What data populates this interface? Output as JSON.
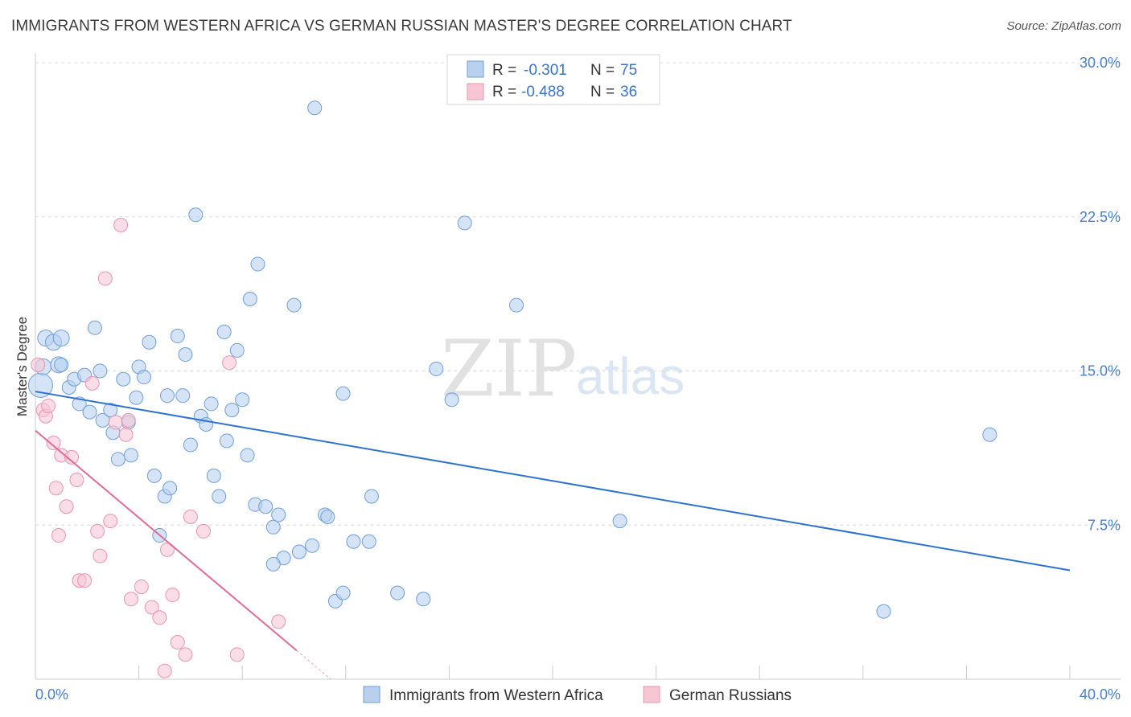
{
  "title": "IMMIGRANTS FROM WESTERN AFRICA VS GERMAN RUSSIAN MASTER'S DEGREE CORRELATION CHART",
  "source": "Source: ZipAtlas.com",
  "watermark": {
    "zip": "ZIP",
    "atlas": "atlas"
  },
  "colors": {
    "blue_fill": "#b8d0ee",
    "blue_stroke": "#6f9fd8",
    "blue_line": "#2e72cf",
    "pink_fill": "#f6c6d5",
    "pink_stroke": "#e795b0",
    "pink_line": "#e06b96",
    "grid": "#dddddd",
    "axis_label": "#4a7fcc"
  },
  "legend_top": {
    "rows": [
      {
        "r_label": "R =",
        "r_value": "-0.301",
        "n_label": "N =",
        "n_value": "75"
      },
      {
        "r_label": "R =",
        "r_value": "-0.488",
        "n_label": "N =",
        "n_value": "36"
      }
    ]
  },
  "chart_data": {
    "type": "scatter",
    "title": "IMMIGRANTS FROM WESTERN AFRICA VS GERMAN RUSSIAN MASTER'S DEGREE CORRELATION CHART",
    "xlabel": "",
    "ylabel": "Master's Degree",
    "xlim": [
      0,
      40
    ],
    "ylim": [
      0,
      30
    ],
    "x_tick_labels": [
      "0.0%",
      "40.0%"
    ],
    "y_ticks": [
      7.5,
      15.0,
      22.5,
      30.0
    ],
    "y_tick_labels": [
      "7.5%",
      "15.0%",
      "22.5%",
      "30.0%"
    ],
    "legend": [
      "Immigrants from Western Africa",
      "German Russians"
    ],
    "series": [
      {
        "name": "Immigrants from Western Africa",
        "color": "blue",
        "trend": {
          "x0": 0,
          "y0": 14.0,
          "x1": 40,
          "y1": 5.3
        },
        "points": [
          [
            0.2,
            14.3
          ],
          [
            0.3,
            15.2
          ],
          [
            0.4,
            16.6
          ],
          [
            0.7,
            16.4
          ],
          [
            0.9,
            15.3
          ],
          [
            1.0,
            16.6
          ],
          [
            1.0,
            15.3
          ],
          [
            1.3,
            14.2
          ],
          [
            1.5,
            14.6
          ],
          [
            1.7,
            13.4
          ],
          [
            1.9,
            14.8
          ],
          [
            2.1,
            13.0
          ],
          [
            2.3,
            17.1
          ],
          [
            2.5,
            15.0
          ],
          [
            2.6,
            12.6
          ],
          [
            2.9,
            13.1
          ],
          [
            3.0,
            12.0
          ],
          [
            3.2,
            10.7
          ],
          [
            3.4,
            14.6
          ],
          [
            3.6,
            12.5
          ],
          [
            3.7,
            10.9
          ],
          [
            3.9,
            13.7
          ],
          [
            4.0,
            15.2
          ],
          [
            4.2,
            14.7
          ],
          [
            4.4,
            16.4
          ],
          [
            4.6,
            9.9
          ],
          [
            4.8,
            7.0
          ],
          [
            5.0,
            8.9
          ],
          [
            5.1,
            13.8
          ],
          [
            5.2,
            9.3
          ],
          [
            5.5,
            16.7
          ],
          [
            5.7,
            13.8
          ],
          [
            5.8,
            15.8
          ],
          [
            6.0,
            11.4
          ],
          [
            6.2,
            22.6
          ],
          [
            6.4,
            12.8
          ],
          [
            6.6,
            12.4
          ],
          [
            6.8,
            13.4
          ],
          [
            6.9,
            9.9
          ],
          [
            7.1,
            8.9
          ],
          [
            7.3,
            16.9
          ],
          [
            7.4,
            11.6
          ],
          [
            7.6,
            13.1
          ],
          [
            7.8,
            16.0
          ],
          [
            8.0,
            13.6
          ],
          [
            8.2,
            10.9
          ],
          [
            8.3,
            18.5
          ],
          [
            8.5,
            8.5
          ],
          [
            8.6,
            20.2
          ],
          [
            8.9,
            8.4
          ],
          [
            9.2,
            7.4
          ],
          [
            9.4,
            8.0
          ],
          [
            9.6,
            5.9
          ],
          [
            9.2,
            5.6
          ],
          [
            10.0,
            18.2
          ],
          [
            10.2,
            6.2
          ],
          [
            10.8,
            27.8
          ],
          [
            10.7,
            6.5
          ],
          [
            11.2,
            8.0
          ],
          [
            11.3,
            7.9
          ],
          [
            11.9,
            13.9
          ],
          [
            11.6,
            3.8
          ],
          [
            11.9,
            4.2
          ],
          [
            12.3,
            6.7
          ],
          [
            12.9,
            6.7
          ],
          [
            13.0,
            8.9
          ],
          [
            14.0,
            4.2
          ],
          [
            15.0,
            3.9
          ],
          [
            15.5,
            15.1
          ],
          [
            16.1,
            13.6
          ],
          [
            16.6,
            22.2
          ],
          [
            18.6,
            18.2
          ],
          [
            22.6,
            7.7
          ],
          [
            32.8,
            3.3
          ],
          [
            36.9,
            11.9
          ]
        ]
      },
      {
        "name": "German Russians",
        "color": "pink",
        "trend": {
          "x0": 0,
          "y0": 12.1,
          "x1": 10.1,
          "y1": 1.4
        },
        "points": [
          [
            0.1,
            15.3
          ],
          [
            0.3,
            13.1
          ],
          [
            0.4,
            12.8
          ],
          [
            0.5,
            13.3
          ],
          [
            0.7,
            11.5
          ],
          [
            0.8,
            9.3
          ],
          [
            0.9,
            7.0
          ],
          [
            1.0,
            10.9
          ],
          [
            1.2,
            8.4
          ],
          [
            1.4,
            10.8
          ],
          [
            1.6,
            9.7
          ],
          [
            1.7,
            4.8
          ],
          [
            1.9,
            4.8
          ],
          [
            2.2,
            14.4
          ],
          [
            2.4,
            7.2
          ],
          [
            2.5,
            6.0
          ],
          [
            2.7,
            19.5
          ],
          [
            2.9,
            7.7
          ],
          [
            3.1,
            12.5
          ],
          [
            3.3,
            22.1
          ],
          [
            3.5,
            11.9
          ],
          [
            3.6,
            12.6
          ],
          [
            3.7,
            3.9
          ],
          [
            4.1,
            4.5
          ],
          [
            4.5,
            3.5
          ],
          [
            4.8,
            3.0
          ],
          [
            5.0,
            0.4
          ],
          [
            5.1,
            6.3
          ],
          [
            5.3,
            4.1
          ],
          [
            5.5,
            1.8
          ],
          [
            5.8,
            1.2
          ],
          [
            6.0,
            7.9
          ],
          [
            6.5,
            7.2
          ],
          [
            7.5,
            15.4
          ],
          [
            7.8,
            1.2
          ],
          [
            9.4,
            2.8
          ]
        ]
      }
    ]
  }
}
